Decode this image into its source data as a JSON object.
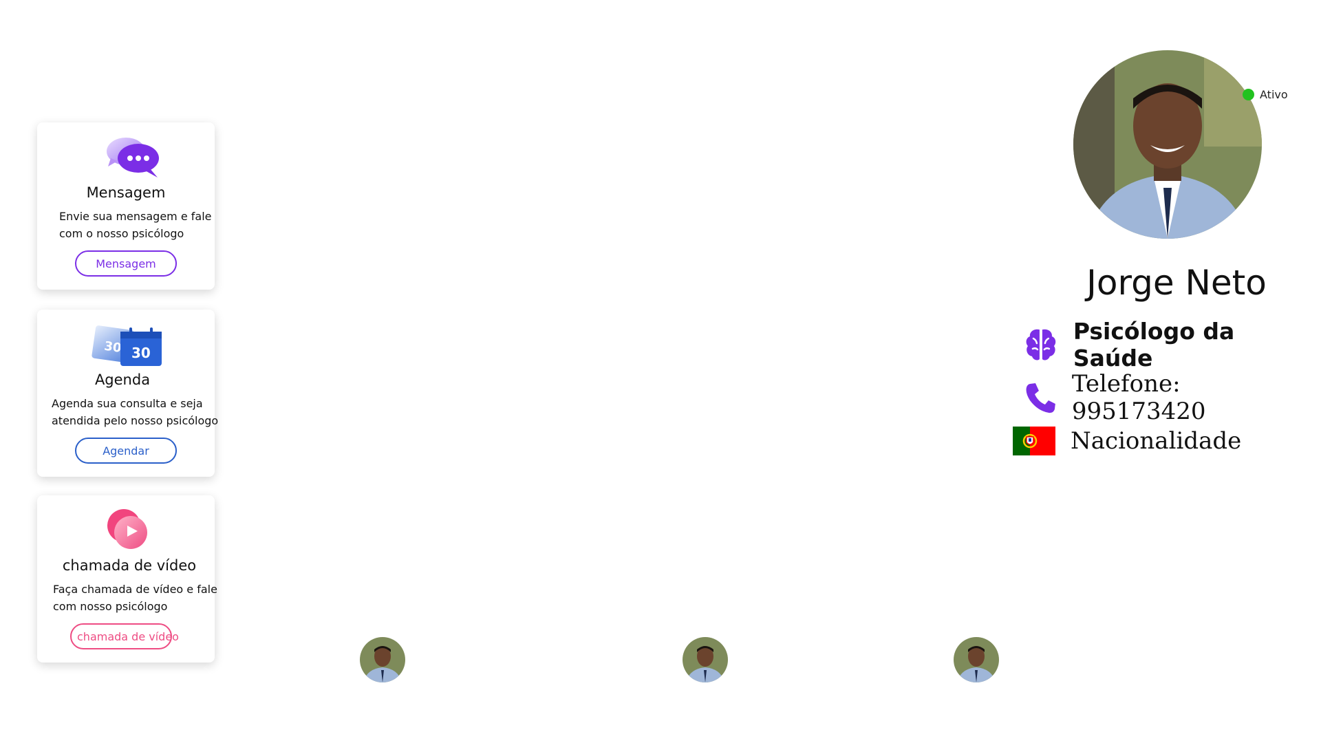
{
  "cards": {
    "message": {
      "icon": "chat-bubbles-icon",
      "title": "Mensagem",
      "desc_line1": "Envie sua mensagem e fale",
      "desc_line2": "com o nosso psicólogo",
      "button": "Mensagem",
      "color": "#7b2ee6"
    },
    "agenda": {
      "icon": "calendar-icon",
      "icon_text_back": "30",
      "icon_text_front": "30",
      "title": "Agenda",
      "desc_line1": "Agenda sua consulta e seja",
      "desc_line2": "atendida pelo nosso psicólogo",
      "button": "Agendar",
      "color": "#2a5fc9"
    },
    "video": {
      "icon": "video-play-icon",
      "title": "chamada de vídeo",
      "desc_line1": "Faça chamada de vídeo e fale",
      "desc_line2": "com nosso psicólogo",
      "button": "chamada de vídeo",
      "color": "#ee4c83"
    }
  },
  "profile": {
    "status": "Ativo",
    "status_color": "#22c21f",
    "name": "Jorge Neto",
    "specialty": "Psicólogo da Saúde",
    "specialty_icon": "brain-icon",
    "phone": "Telefone: 995173420",
    "phone_icon": "phone-icon",
    "nationality": "Nacionalidade",
    "nationality_icon": "portugal-flag-icon"
  },
  "avatars": {
    "count": 3
  }
}
